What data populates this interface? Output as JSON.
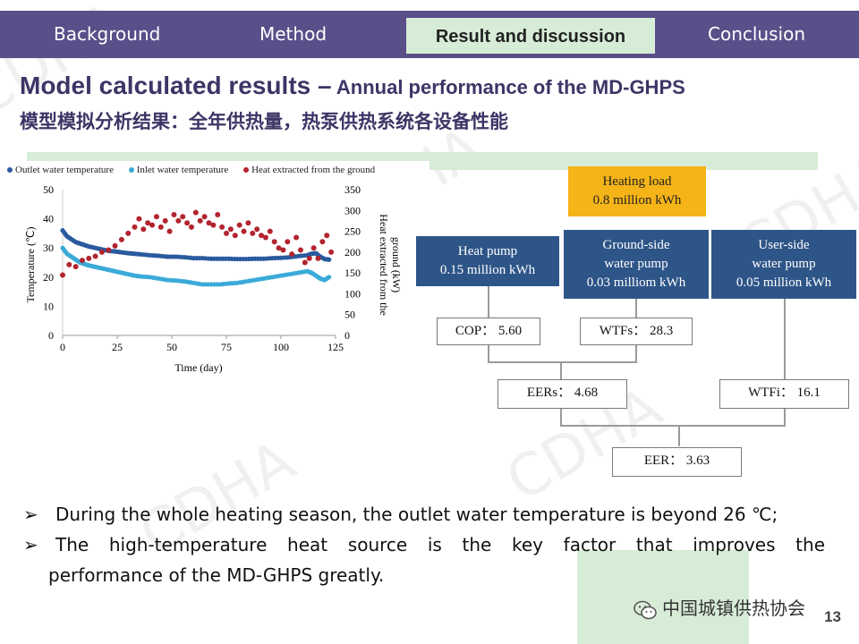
{
  "nav": {
    "items": [
      "Background",
      "Method",
      "Result and discussion",
      "Conclusion"
    ],
    "active_index": 2
  },
  "title": {
    "main": "Model calculated results –",
    "sub": " Annual performance of the MD-GHPS",
    "chinese": "模型模拟分析结果：全年供热量，热泵供热系统各设备性能"
  },
  "chart_data": {
    "type": "scatter",
    "xlabel": "Time (day)",
    "ylabel": "Temperature (℃)",
    "y2label_line1": "Heat extracted from the",
    "y2label_line2": "ground (kW)",
    "xlim": [
      0,
      125
    ],
    "ylim": [
      0,
      50
    ],
    "y2lim": [
      0,
      350
    ],
    "xticks": [
      "0",
      "25",
      "50",
      "75",
      "100",
      "125"
    ],
    "yticks": [
      "0",
      "10",
      "20",
      "30",
      "40",
      "50"
    ],
    "y2ticks": [
      "0",
      "50",
      "100",
      "150",
      "200",
      "250",
      "300",
      "350"
    ],
    "legend_position": "top",
    "series": [
      {
        "name": "Outlet water temperature",
        "color": "#2a5a9e",
        "axis": "left",
        "x": [
          0,
          2,
          4,
          6,
          8,
          10,
          12,
          15,
          18,
          21,
          24,
          27,
          30,
          33,
          36,
          40,
          44,
          48,
          52,
          56,
          60,
          64,
          68,
          72,
          76,
          80,
          84,
          88,
          92,
          96,
          100,
          104,
          108,
          112,
          114,
          116,
          118,
          120,
          122
        ],
        "y": [
          36,
          34,
          33,
          32,
          31.5,
          31,
          30.5,
          30,
          29.5,
          29,
          28.8,
          28.5,
          28.2,
          28,
          27.8,
          27.5,
          27.3,
          27,
          27,
          26.8,
          26.5,
          26.5,
          26.3,
          26.3,
          26.3,
          26.2,
          26.2,
          26.3,
          26.3,
          26.5,
          26.6,
          26.8,
          27.2,
          27.5,
          28,
          28.2,
          27,
          26.2,
          26
        ]
      },
      {
        "name": "Inlet water temperature",
        "color": "#3aaad8",
        "axis": "left",
        "x": [
          0,
          2,
          4,
          6,
          8,
          10,
          12,
          15,
          18,
          21,
          24,
          27,
          30,
          33,
          36,
          40,
          44,
          48,
          52,
          56,
          60,
          64,
          68,
          72,
          76,
          80,
          84,
          88,
          92,
          96,
          100,
          104,
          108,
          112,
          114,
          116,
          118,
          120,
          122
        ],
        "y": [
          30,
          28,
          27,
          26,
          25,
          24.5,
          24,
          23.5,
          23,
          22.5,
          22,
          21.5,
          21,
          20.5,
          20.2,
          20,
          19.5,
          19,
          18.8,
          18.5,
          18,
          17.5,
          17.5,
          17.5,
          17.8,
          18,
          18.5,
          19,
          19.5,
          20,
          20.5,
          21,
          21.5,
          22,
          21.5,
          20.5,
          19.5,
          19,
          20
        ]
      },
      {
        "name": "Heat extracted from the ground",
        "color": "#b2242e",
        "axis": "right",
        "x": [
          0,
          3,
          6,
          9,
          12,
          15,
          18,
          21,
          24,
          27,
          30,
          33,
          35,
          37,
          39,
          41,
          43,
          45,
          47,
          49,
          51,
          53,
          55,
          57,
          59,
          61,
          63,
          65,
          67,
          69,
          71,
          73,
          75,
          77,
          79,
          81,
          83,
          85,
          87,
          89,
          91,
          93,
          95,
          97,
          99,
          101,
          103,
          105,
          107,
          109,
          111,
          113,
          115,
          117,
          119,
          121,
          123
        ],
        "y": [
          145,
          170,
          165,
          180,
          185,
          190,
          200,
          205,
          215,
          230,
          245,
          260,
          280,
          255,
          270,
          265,
          285,
          260,
          275,
          250,
          290,
          275,
          285,
          270,
          260,
          295,
          275,
          285,
          270,
          265,
          290,
          260,
          245,
          255,
          240,
          265,
          250,
          270,
          245,
          255,
          240,
          235,
          250,
          225,
          210,
          205,
          225,
          195,
          235,
          205,
          175,
          185,
          210,
          185,
          225,
          240,
          200
        ]
      }
    ]
  },
  "flow": {
    "heating_load_label": "Heating  load",
    "heating_load_value": "0.8 million  kWh",
    "heat_pump_label": "Heat pump",
    "heat_pump_value": "0.15 million  kWh",
    "ground_pump_line1": "Ground-side",
    "ground_pump_line2": "water pump",
    "ground_pump_value": "0.03 milliom  kWh",
    "user_pump_line1": "User-side",
    "user_pump_line2": "water pump",
    "user_pump_value": "0.05 million  kWh",
    "cop": "COP： 5.60",
    "wtfs": "WTFs： 28.3",
    "eers": "EERs： 4.68",
    "wtfi": "WTFi： 16.1",
    "eer": "EER： 3.63"
  },
  "bullets": {
    "marker": "➢",
    "item1": "During the whole heating season, the outlet water temperature is beyond 26 ℃;",
    "item2_line1": "The high-temperature heat source is the key factor that improves the",
    "item2_line2": "performance of the MD-GHPS greatly."
  },
  "watermark_text": "中国城镇供热协会",
  "bg_watermark": "CDHA",
  "page_number": "13"
}
